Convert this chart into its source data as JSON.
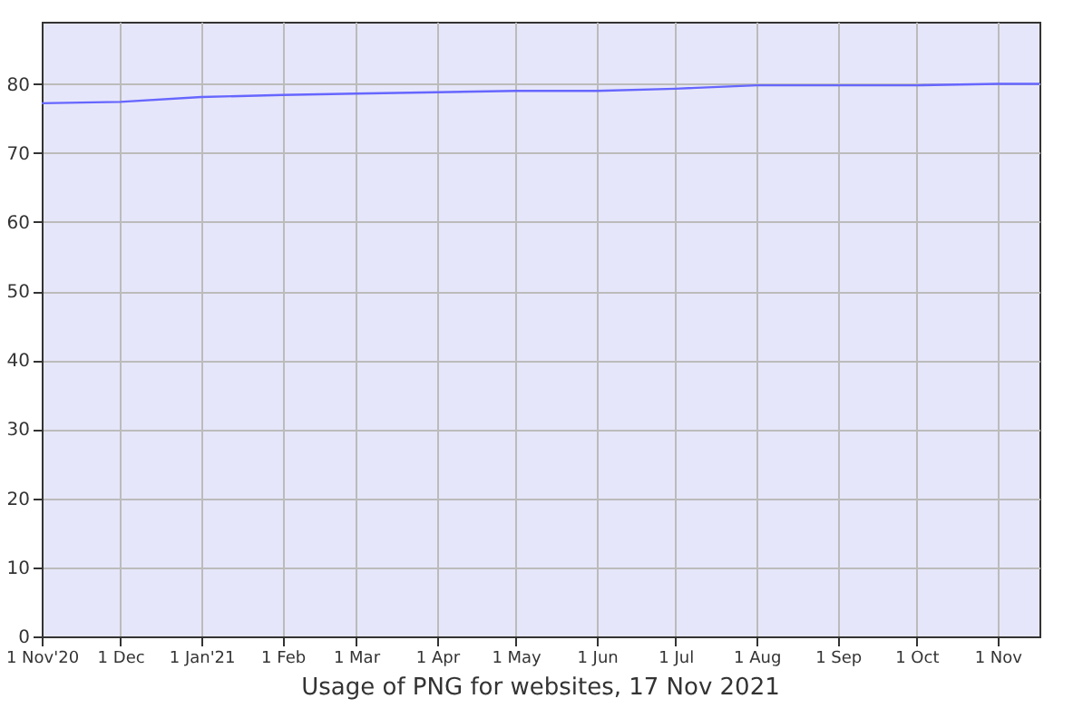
{
  "chart_data": {
    "type": "line",
    "title": "Usage of PNG for websites, 17 Nov 2021",
    "x": [
      "2020-11-01",
      "2020-12-01",
      "2021-01-01",
      "2021-02-01",
      "2021-03-01",
      "2021-04-01",
      "2021-05-01",
      "2021-06-01",
      "2021-07-01",
      "2021-08-01",
      "2021-09-01",
      "2021-10-01",
      "2021-11-01",
      "2021-11-17"
    ],
    "values": [
      77.2,
      77.4,
      78.1,
      78.4,
      78.6,
      78.8,
      79.0,
      79.0,
      79.3,
      79.8,
      79.8,
      79.8,
      80.0,
      80.0
    ],
    "color": "#6666ff",
    "xlim": [
      "2020-11-01",
      "2021-11-17"
    ],
    "xticks": [
      {
        "value": "2020-11-01",
        "label": "1 Nov'20"
      },
      {
        "value": "2020-12-01",
        "label": "1 Dec"
      },
      {
        "value": "2021-01-01",
        "label": "1 Jan'21"
      },
      {
        "value": "2021-02-01",
        "label": "1 Feb"
      },
      {
        "value": "2021-03-01",
        "label": "1 Mar"
      },
      {
        "value": "2021-04-01",
        "label": "1 Apr"
      },
      {
        "value": "2021-05-01",
        "label": "1 May"
      },
      {
        "value": "2021-06-01",
        "label": "1 Jun"
      },
      {
        "value": "2021-07-01",
        "label": "1 Jul"
      },
      {
        "value": "2021-08-01",
        "label": "1 Aug"
      },
      {
        "value": "2021-09-01",
        "label": "1 Sep"
      },
      {
        "value": "2021-10-01",
        "label": "1 Oct"
      },
      {
        "value": "2021-11-01",
        "label": "1 Nov"
      }
    ],
    "ylim": [
      0,
      89
    ],
    "yticks": [
      0,
      10,
      20,
      30,
      40,
      50,
      60,
      70,
      80
    ],
    "grid": true
  }
}
